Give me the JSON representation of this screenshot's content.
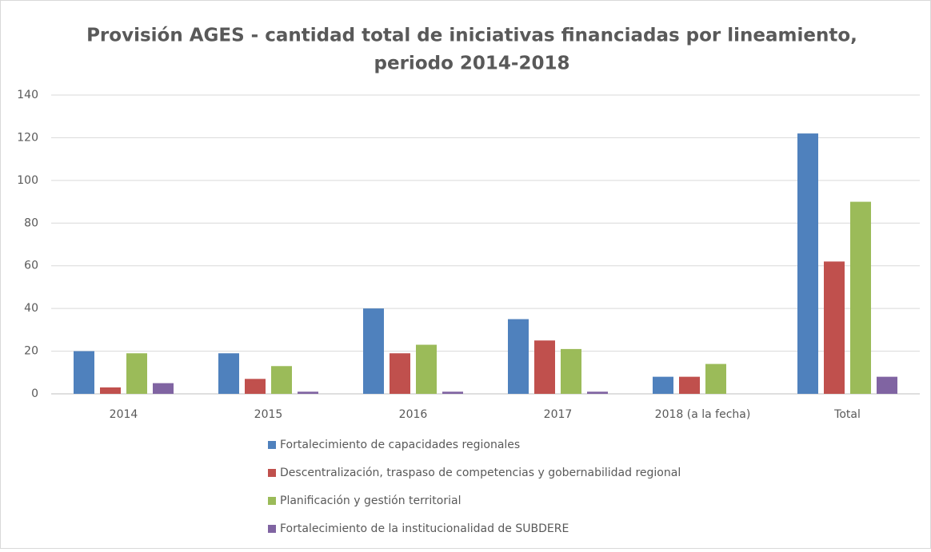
{
  "chart_data": {
    "type": "bar",
    "title": [
      "Provisión AGES - cantidad total de iniciativas financiadas por lineamiento,",
      "periodo 2014-2018"
    ],
    "categories": [
      "2014",
      "2015",
      "2016",
      "2017",
      "2018 (a la fecha)",
      "Total"
    ],
    "series": [
      {
        "name": "Fortalecimiento de capacidades regionales",
        "color": "#4f81bd",
        "values": [
          20,
          19,
          40,
          35,
          8,
          122
        ]
      },
      {
        "name": "Descentralización, traspaso de competencias y gobernabilidad regional",
        "color": "#c0504d",
        "values": [
          3,
          7,
          19,
          25,
          8,
          62
        ]
      },
      {
        "name": "Planificación y gestión territorial",
        "color": "#9bbb59",
        "values": [
          19,
          13,
          23,
          21,
          14,
          90
        ]
      },
      {
        "name": "Fortalecimiento de la institucionalidad de SUBDERE",
        "color": "#8064a2",
        "values": [
          5,
          1,
          1,
          1,
          0,
          8
        ]
      }
    ],
    "ylim": [
      0,
      140
    ],
    "yticks": [
      0,
      20,
      40,
      60,
      80,
      100,
      120,
      140
    ],
    "grid": true,
    "legend": "bottom"
  }
}
